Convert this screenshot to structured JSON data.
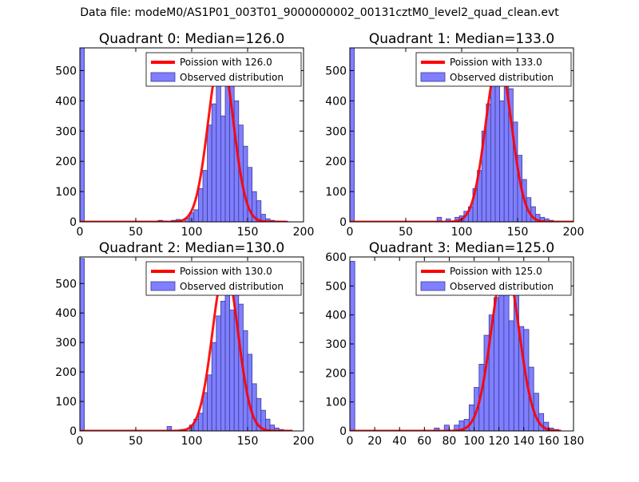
{
  "figure": {
    "suptitle": "Data file: modeM0/AS1P01_003T01_9000000002_00131cztM0_level2_quad_clean.evt"
  },
  "colors": {
    "bar_fill": "#7f7fff",
    "bar_edge": "#3b3b9a",
    "curve": "#ff0000",
    "axes": "#000000",
    "background": "#ffffff"
  },
  "chart_data": [
    {
      "type": "bar",
      "title": "Quadrant 0: Median=126.0",
      "median": 126.0,
      "xlim": [
        0,
        200
      ],
      "ylim": [
        0,
        575
      ],
      "xticks": [
        0,
        50,
        100,
        150,
        200
      ],
      "yticks": [
        0,
        100,
        200,
        300,
        400,
        500
      ],
      "bin_width": 4,
      "legend": {
        "position": "top-right",
        "entries": [
          {
            "label": "Poission with 126.0",
            "kind": "line"
          },
          {
            "label": "Observed distribution",
            "kind": "patch"
          }
        ]
      },
      "series": [
        {
          "name": "Observed distribution",
          "x": [
            0,
            70,
            74,
            82,
            86,
            94,
            98,
            102,
            106,
            110,
            114,
            118,
            122,
            126,
            130,
            134,
            138,
            142,
            146,
            150,
            154,
            158,
            162,
            166,
            170,
            174,
            178,
            182
          ],
          "values": [
            575,
            5,
            3,
            5,
            8,
            12,
            30,
            40,
            110,
            170,
            320,
            390,
            470,
            350,
            525,
            490,
            400,
            320,
            250,
            180,
            100,
            70,
            25,
            10,
            5,
            3,
            2,
            2
          ]
        },
        {
          "name": "Poission with 126.0",
          "curve": "poisson",
          "lambda": 126.0,
          "peak": 550,
          "range": [
            0,
            185
          ]
        }
      ]
    },
    {
      "type": "bar",
      "title": "Quadrant 1: Median=133.0",
      "median": 133.0,
      "xlim": [
        0,
        200
      ],
      "ylim": [
        0,
        575
      ],
      "xticks": [
        0,
        50,
        100,
        150,
        200
      ],
      "yticks": [
        0,
        100,
        200,
        300,
        400,
        500
      ],
      "bin_width": 4,
      "legend": {
        "position": "top-right",
        "entries": [
          {
            "label": "Poission with 133.0",
            "kind": "line"
          },
          {
            "label": "Observed distribution",
            "kind": "patch"
          }
        ]
      },
      "series": [
        {
          "name": "Observed distribution",
          "x": [
            0,
            78,
            86,
            94,
            98,
            102,
            106,
            110,
            114,
            118,
            122,
            126,
            130,
            134,
            138,
            142,
            146,
            150,
            154,
            158,
            162,
            166,
            170,
            174,
            178,
            182
          ],
          "values": [
            575,
            15,
            10,
            15,
            20,
            35,
            50,
            110,
            170,
            300,
            390,
            450,
            460,
            400,
            520,
            440,
            330,
            220,
            140,
            80,
            50,
            25,
            15,
            10,
            5,
            2
          ]
        },
        {
          "name": "Poission with 133.0",
          "curve": "poisson",
          "lambda": 133.0,
          "peak": 535,
          "range": [
            0,
            200
          ]
        }
      ]
    },
    {
      "type": "bar",
      "title": "Quadrant 2: Median=130.0",
      "median": 130.0,
      "xlim": [
        0,
        200
      ],
      "ylim": [
        0,
        590
      ],
      "xticks": [
        0,
        50,
        100,
        150,
        200
      ],
      "yticks": [
        0,
        100,
        200,
        300,
        400,
        500
      ],
      "bin_width": 4,
      "legend": {
        "position": "top-right",
        "entries": [
          {
            "label": "Poission with 130.0",
            "kind": "line"
          },
          {
            "label": "Observed distribution",
            "kind": "patch"
          }
        ]
      },
      "series": [
        {
          "name": "Observed distribution",
          "x": [
            0,
            78,
            90,
            98,
            102,
            106,
            110,
            114,
            118,
            122,
            126,
            130,
            134,
            138,
            142,
            146,
            150,
            154,
            158,
            162,
            166,
            170,
            174,
            178,
            182,
            186
          ],
          "values": [
            585,
            15,
            5,
            20,
            40,
            60,
            130,
            190,
            300,
            390,
            440,
            490,
            410,
            520,
            430,
            340,
            260,
            160,
            110,
            70,
            40,
            20,
            10,
            5,
            3,
            2
          ]
        },
        {
          "name": "Poission with 130.0",
          "curve": "poisson",
          "lambda": 130.0,
          "peak": 555,
          "range": [
            0,
            190
          ]
        }
      ]
    },
    {
      "type": "bar",
      "title": "Quadrant 3: Median=125.0",
      "median": 125.0,
      "xlim": [
        0,
        180
      ],
      "ylim": [
        0,
        600
      ],
      "xticks": [
        0,
        20,
        40,
        60,
        80,
        100,
        120,
        140,
        160,
        180
      ],
      "yticks": [
        0,
        100,
        200,
        300,
        400,
        500,
        600
      ],
      "bin_width": 4,
      "legend": {
        "position": "top-right",
        "entries": [
          {
            "label": "Poission with 125.0",
            "kind": "line"
          },
          {
            "label": "Observed distribution",
            "kind": "patch"
          }
        ]
      },
      "series": [
        {
          "name": "Observed distribution",
          "x": [
            0,
            68,
            76,
            84,
            88,
            92,
            96,
            100,
            104,
            108,
            112,
            116,
            120,
            124,
            128,
            132,
            136,
            140,
            144,
            148,
            152,
            156,
            160,
            164
          ],
          "values": [
            585,
            10,
            20,
            20,
            35,
            40,
            90,
            150,
            230,
            330,
            400,
            460,
            530,
            500,
            380,
            560,
            360,
            350,
            220,
            130,
            60,
            30,
            10,
            5
          ]
        },
        {
          "name": "Poission with 125.0",
          "curve": "poisson",
          "lambda": 125.0,
          "peak": 575,
          "range": [
            0,
            170
          ]
        }
      ]
    }
  ]
}
